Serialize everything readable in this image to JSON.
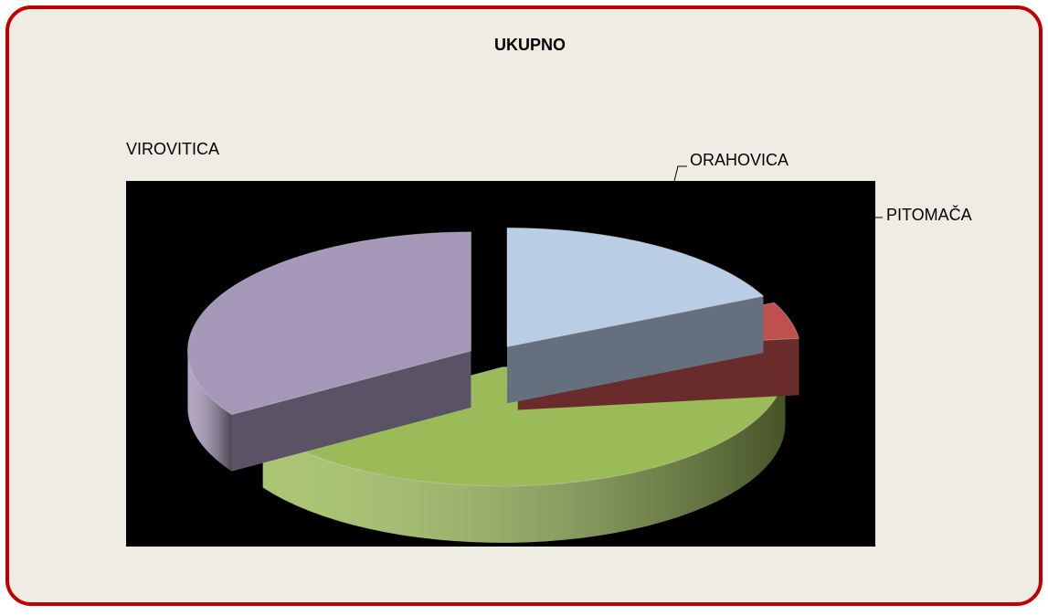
{
  "chart_data": {
    "type": "pie",
    "title": "UKUPNO",
    "categories": [
      "ORAHOVICA",
      "PITOMAČA",
      null,
      "VIROVITICA"
    ],
    "values": [
      18,
      5,
      43,
      34
    ],
    "colors": [
      "#b9cde5",
      "#c0504d",
      "#9bbb59",
      "#a597b8"
    ]
  }
}
